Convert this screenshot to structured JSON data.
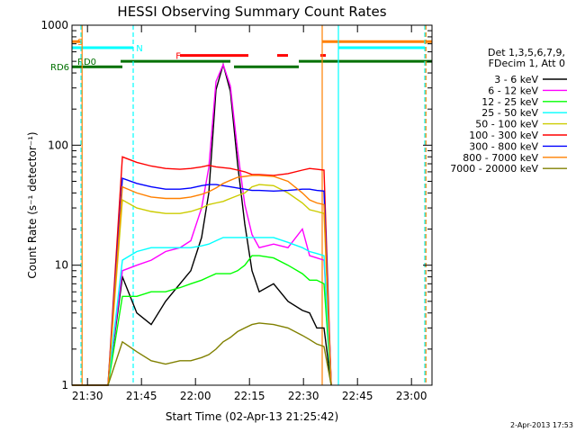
{
  "chart_data": {
    "type": "line",
    "title": "HESSI Observing Summary Count Rates",
    "xlabel": "Start Time (02-Apr-13 21:25:42)",
    "ylabel": "Count Rate (s⁻¹ detector⁻¹)",
    "x_unit": "minutes after 21:25:42",
    "xlim": [
      0,
      100
    ],
    "ylim": [
      1,
      1000
    ],
    "yscale": "log",
    "x_ticks": [
      {
        "label": "21:30",
        "x": 4.3
      },
      {
        "label": "21:45",
        "x": 19.3
      },
      {
        "label": "22:00",
        "x": 34.3
      },
      {
        "label": "22:15",
        "x": 49.3
      },
      {
        "label": "22:30",
        "x": 64.3
      },
      {
        "label": "22:45",
        "x": 79.3
      },
      {
        "label": "23:00",
        "x": 94.3
      }
    ],
    "y_ticks": [
      {
        "label": "1",
        "y": 1
      },
      {
        "label": "10",
        "y": 10
      },
      {
        "label": "100",
        "y": 100
      },
      {
        "label": "1000",
        "y": 1000
      }
    ],
    "legend_header": [
      "Det 1,3,5,6,7,9,",
      "FDecim 1, Att 0"
    ],
    "legend_placement": "right",
    "series": [
      {
        "name": "3 - 6 keV",
        "color": "#000000",
        "x": [
          0,
          10,
          14,
          18,
          22,
          26,
          30,
          33,
          36,
          38,
          40,
          42,
          44,
          46,
          48,
          50,
          52,
          56,
          60,
          64,
          66,
          68,
          70,
          72
        ],
        "y": [
          0,
          0,
          8,
          4,
          3.2,
          5,
          7,
          9,
          17,
          40,
          290,
          470,
          280,
          70,
          22,
          9,
          6,
          7,
          5,
          4.2,
          4,
          3,
          3,
          0
        ]
      },
      {
        "name": "6 - 12 keV",
        "color": "#ff00ff",
        "x": [
          0,
          10,
          14,
          18,
          22,
          26,
          30,
          33,
          36,
          38,
          40,
          42,
          44,
          46,
          48,
          50,
          52,
          56,
          60,
          64,
          66,
          68,
          70,
          72
        ],
        "y": [
          0,
          0,
          9,
          10,
          11,
          13,
          14,
          16,
          30,
          65,
          340,
          470,
          310,
          90,
          32,
          18,
          14,
          15,
          14,
          20,
          12,
          11.5,
          11,
          0
        ]
      },
      {
        "name": "12 - 25 keV",
        "color": "#00ff00",
        "x": [
          0,
          10,
          14,
          18,
          22,
          26,
          30,
          33,
          36,
          38,
          40,
          42,
          44,
          46,
          48,
          50,
          52,
          56,
          60,
          64,
          66,
          68,
          70,
          72
        ],
        "y": [
          0,
          0,
          5.5,
          5.5,
          6,
          6,
          6.5,
          7,
          7.5,
          8,
          8.5,
          8.5,
          8.5,
          9,
          10,
          12,
          12,
          11.5,
          10,
          8.5,
          7.5,
          7.5,
          7,
          0
        ]
      },
      {
        "name": "25 - 50 keV",
        "color": "#00ffff",
        "x": [
          0,
          10,
          14,
          18,
          22,
          26,
          30,
          33,
          36,
          38,
          40,
          42,
          44,
          46,
          48,
          50,
          52,
          56,
          60,
          64,
          66,
          68,
          70,
          72
        ],
        "y": [
          0,
          0,
          11,
          13,
          14,
          14,
          14,
          14,
          14.5,
          15,
          16,
          17,
          17,
          17,
          17,
          17,
          17,
          17,
          15.5,
          14,
          13,
          12.5,
          12,
          0
        ]
      },
      {
        "name": "50 - 100 keV",
        "color": "#cccc00",
        "x": [
          0,
          10,
          14,
          18,
          22,
          26,
          30,
          33,
          36,
          38,
          40,
          42,
          44,
          46,
          48,
          50,
          52,
          56,
          60,
          64,
          66,
          68,
          70,
          72
        ],
        "y": [
          0,
          0,
          35,
          30,
          28,
          27,
          27,
          28,
          30,
          32,
          33,
          34,
          36,
          38,
          40,
          45,
          47,
          46,
          40,
          33,
          29,
          28,
          27,
          0
        ]
      },
      {
        "name": "100 - 300 keV",
        "color": "#ff0000",
        "x": [
          0,
          10,
          14,
          18,
          22,
          26,
          30,
          33,
          36,
          38,
          40,
          42,
          44,
          46,
          48,
          50,
          52,
          56,
          60,
          64,
          66,
          68,
          70,
          72
        ],
        "y": [
          0,
          0,
          80,
          72,
          67,
          64,
          63,
          64,
          66,
          68,
          66,
          65,
          64,
          62,
          60,
          57,
          57,
          56,
          58,
          62,
          64,
          63,
          62,
          0
        ]
      },
      {
        "name": "300 - 800 keV",
        "color": "#0000ff",
        "x": [
          0,
          10,
          14,
          18,
          22,
          26,
          30,
          33,
          36,
          38,
          40,
          42,
          44,
          46,
          48,
          50,
          52,
          56,
          60,
          64,
          66,
          68,
          70,
          72
        ],
        "y": [
          0,
          0,
          53,
          48,
          45,
          43,
          43,
          44,
          46,
          47,
          47,
          46,
          45,
          44,
          43,
          42,
          42,
          41.5,
          42,
          43,
          43,
          42,
          41.5,
          0
        ]
      },
      {
        "name": "800 - 7000 keV",
        "color": "#ff8000",
        "x": [
          0,
          10,
          14,
          18,
          22,
          26,
          30,
          33,
          36,
          38,
          40,
          42,
          44,
          46,
          48,
          50,
          52,
          56,
          60,
          64,
          66,
          68,
          70,
          72
        ],
        "y": [
          0,
          0,
          45,
          40,
          37,
          36,
          36,
          37,
          39,
          41,
          44,
          48,
          51,
          54,
          55,
          56,
          56,
          55,
          50,
          40,
          35,
          33,
          32,
          0
        ]
      },
      {
        "name": "7000 - 20000 keV",
        "color": "#808000",
        "x": [
          0,
          10,
          14,
          18,
          22,
          26,
          30,
          33,
          36,
          38,
          40,
          42,
          44,
          46,
          48,
          50,
          52,
          56,
          60,
          64,
          66,
          68,
          70,
          72
        ],
        "y": [
          0,
          0,
          2.3,
          1.9,
          1.6,
          1.5,
          1.6,
          1.6,
          1.7,
          1.8,
          2,
          2.3,
          2.5,
          2.8,
          3,
          3.2,
          3.3,
          3.2,
          3,
          2.6,
          2.4,
          2.2,
          2.1,
          0
        ]
      }
    ],
    "flag_bars": [
      {
        "label": "S",
        "color": "#ff8000",
        "label_x": 1.5,
        "y": 730,
        "segments": [
          [
            0,
            2.5
          ],
          [
            69.5,
            100
          ]
        ]
      },
      {
        "label": "N",
        "color": "#00ffff",
        "label_x": 17.8,
        "y": 650,
        "segments": [
          [
            0,
            17
          ],
          [
            74,
            98
          ]
        ]
      },
      {
        "label": "F",
        "color": "#ff0000",
        "label_x": 28.8,
        "y": 560,
        "segments": [
          [
            30,
            49
          ],
          [
            57,
            60
          ],
          [
            69,
            70.5
          ]
        ]
      },
      {
        "label": "RD0",
        "color": "#007000",
        "label_x": 1.5,
        "y": 500,
        "segments": [
          [
            13.5,
            44
          ],
          [
            63,
            100
          ]
        ]
      },
      {
        "label": "RD6",
        "color": "#007000",
        "label_x": -6,
        "y": 450,
        "segments": [
          [
            0,
            14
          ],
          [
            45,
            63
          ]
        ]
      }
    ],
    "vlines": [
      {
        "x": 2.5,
        "color": "#00ffff",
        "style": "dashed"
      },
      {
        "x": 2.8,
        "color": "#ff8000",
        "style": "solid"
      },
      {
        "x": 17,
        "color": "#00ffff",
        "style": "dashed"
      },
      {
        "x": 69.5,
        "color": "#ff8000",
        "style": "solid"
      },
      {
        "x": 74,
        "color": "#00ffff",
        "style": "solid"
      },
      {
        "x": 98,
        "color": "#00ffff",
        "style": "dashed"
      },
      {
        "x": 98.3,
        "color": "#ff8000",
        "style": "dashed"
      }
    ],
    "grid": false,
    "timestamp": "2-Apr-2013 17:53"
  }
}
